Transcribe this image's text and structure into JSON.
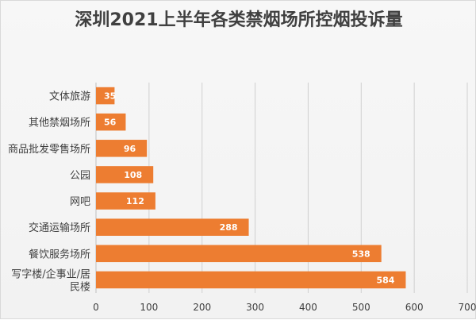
{
  "chart_data": {
    "type": "bar",
    "orientation": "horizontal",
    "title": "深圳2021上半年各类禁烟场所控烟投诉量",
    "categories": [
      "文体旅游",
      "其他禁烟场所",
      "商品批发零售场所",
      "公园",
      "网吧",
      "交通运输场所",
      "餐饮服务场所",
      "写字楼/企事业/居民楼"
    ],
    "category_lines": [
      [
        "文体旅游"
      ],
      [
        "其他禁烟场所"
      ],
      [
        "商品批发零售场所"
      ],
      [
        "公园"
      ],
      [
        "网吧"
      ],
      [
        "交通运输场所"
      ],
      [
        "餐饮服务场所"
      ],
      [
        "写字楼/企事业/居",
        "民楼"
      ]
    ],
    "values": [
      35,
      56,
      96,
      108,
      112,
      288,
      538,
      584
    ],
    "xlim": [
      0,
      700
    ],
    "xticks": [
      0,
      100,
      200,
      300,
      400,
      500,
      600,
      700
    ],
    "grid": true,
    "data_labels": true,
    "bar_color": "#ed7d31"
  }
}
